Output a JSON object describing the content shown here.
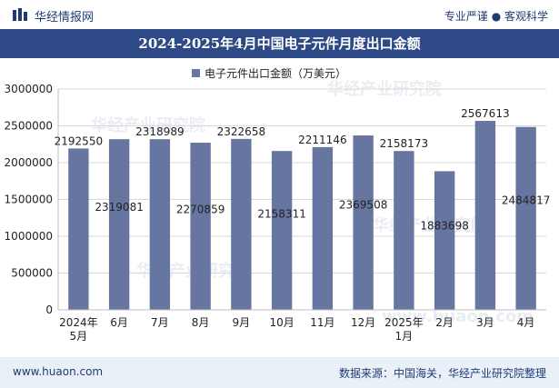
{
  "header": {
    "brand": "华经情报网",
    "tagline": "专业严谨 ● 客观科学"
  },
  "colors": {
    "bar": "#6776a0",
    "title_bg": "#2e4a86",
    "footer_bg": "#eaf0f8"
  },
  "footer": {
    "site": "www.huaon.com",
    "source": "数据来源：中国海关，华经产业研究院整理"
  },
  "watermark": {
    "text": "华经产业研究院",
    "url": "www.huaon.com"
  },
  "chart_data": {
    "type": "bar",
    "title": "2024-2025年4月中国电子元件月度出口金额",
    "legend": "电子元件出口金额（万美元）",
    "categories": [
      [
        "2024年",
        "5月"
      ],
      [
        "6月"
      ],
      [
        "7月"
      ],
      [
        "8月"
      ],
      [
        "9月"
      ],
      [
        "10月"
      ],
      [
        "11月"
      ],
      [
        "12月"
      ],
      [
        "2025年",
        "1月"
      ],
      [
        "2月"
      ],
      [
        "3月"
      ],
      [
        "4月"
      ]
    ],
    "values": [
      2192550,
      2319081,
      2318989,
      2270859,
      2322658,
      2158311,
      2211146,
      2369508,
      2158173,
      1883698,
      2567613,
      2484817
    ],
    "label_positions": [
      "top",
      "inside",
      "top",
      "inside",
      "top",
      "inside",
      "top",
      "inside",
      "top",
      "inside",
      "top",
      "inside"
    ],
    "yticks": [
      "0",
      "500000",
      "1000000",
      "1500000",
      "2000000",
      "2500000",
      "3000000"
    ],
    "ylim": [
      0,
      3000000
    ]
  }
}
